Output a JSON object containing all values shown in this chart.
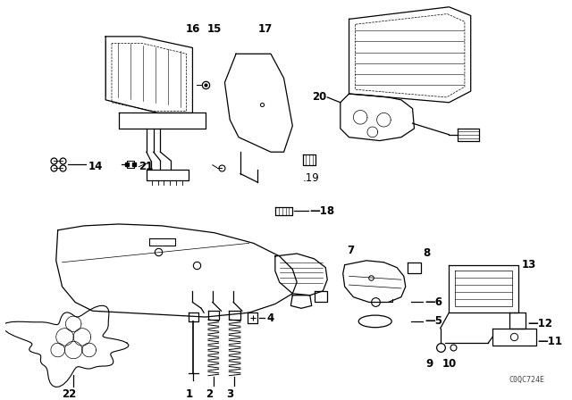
{
  "bg_color": "#ffffff",
  "line_color": "#000000",
  "fig_width": 6.4,
  "fig_height": 4.48,
  "dpi": 100,
  "watermark": "C0QC724E"
}
